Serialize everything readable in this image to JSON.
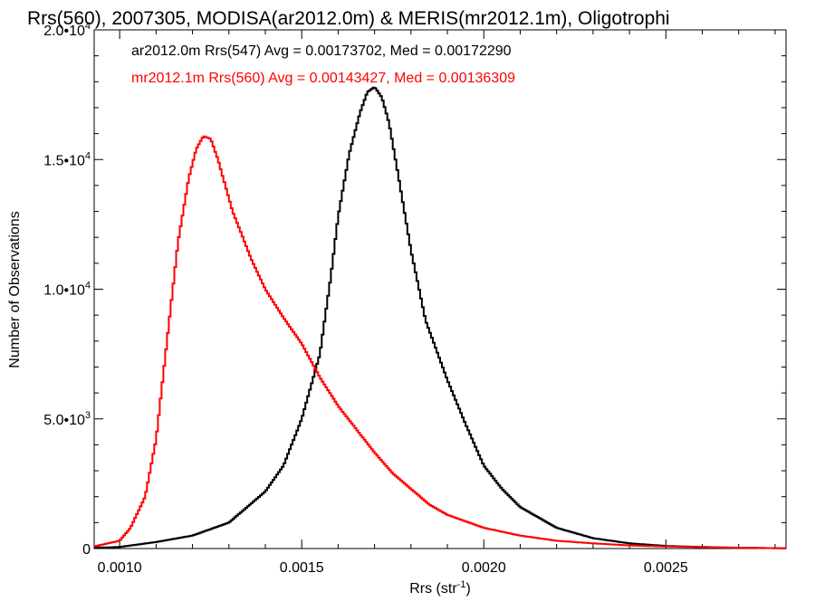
{
  "chart_data": {
    "type": "line",
    "title": "Rrs(560), 2007305, MODISA(ar2012.0m) & MERIS(mr2012.1m), Oligotrophi",
    "xlabel": "Rrs (str",
    "xlabel_sup": "-1",
    "xlabel_end": ")",
    "ylabel": "Number of Observations",
    "xlim": [
      0.00093,
      0.00283
    ],
    "ylim": [
      0,
      20000
    ],
    "grid": false,
    "legend_position": "top-left",
    "x_ticks": [
      {
        "value": 0.001,
        "label": "0.0010"
      },
      {
        "value": 0.0015,
        "label": "0.0015"
      },
      {
        "value": 0.002,
        "label": "0.0020"
      },
      {
        "value": 0.0025,
        "label": "0.0025"
      }
    ],
    "y_ticks": [
      {
        "value": 0,
        "base": "0",
        "exp": ""
      },
      {
        "value": 5000,
        "base": "5.0•10",
        "exp": "3"
      },
      {
        "value": 10000,
        "base": "1.0•10",
        "exp": "4"
      },
      {
        "value": 15000,
        "base": "1.5•10",
        "exp": "4"
      },
      {
        "value": 20000,
        "base": "2.0•10",
        "exp": "4"
      }
    ],
    "series": [
      {
        "name": "ar2012.0m Rrs(547)",
        "legend": "ar2012.0m Rrs(547) Avg = 0.00173702, Med = 0.00172290",
        "color": "#000000",
        "step": true,
        "x": [
          0.00093,
          0.001,
          0.0011,
          0.0012,
          0.0013,
          0.0014,
          0.00145,
          0.0015,
          0.00155,
          0.00158,
          0.0016,
          0.00163,
          0.00166,
          0.00168,
          0.0017,
          0.00172,
          0.00174,
          0.00176,
          0.0018,
          0.00184,
          0.0019,
          0.00195,
          0.002,
          0.00205,
          0.0021,
          0.0022,
          0.0023,
          0.0024,
          0.0025,
          0.0026,
          0.0027,
          0.00283
        ],
        "y": [
          30,
          60,
          250,
          500,
          1000,
          2200,
          3200,
          5000,
          7500,
          10500,
          12800,
          15200,
          16800,
          17600,
          17800,
          17400,
          16400,
          14800,
          11500,
          8800,
          6500,
          4800,
          3200,
          2300,
          1600,
          800,
          400,
          200,
          100,
          60,
          30,
          10
        ]
      },
      {
        "name": "mr2012.1m Rrs(560)",
        "legend": "mr2012.1m Rrs(560) Avg = 0.00143427, Med = 0.00136309",
        "color": "#ff0000",
        "step": true,
        "x": [
          0.00093,
          0.001,
          0.00103,
          0.00107,
          0.0011,
          0.00113,
          0.00116,
          0.00119,
          0.00121,
          0.00123,
          0.00125,
          0.00127,
          0.00129,
          0.00131,
          0.00133,
          0.00136,
          0.0014,
          0.00145,
          0.0015,
          0.00155,
          0.0016,
          0.00165,
          0.0017,
          0.00175,
          0.0018,
          0.00185,
          0.0019,
          0.002,
          0.0021,
          0.0022,
          0.0023,
          0.0024,
          0.0025,
          0.0026,
          0.0027,
          0.00283
        ],
        "y": [
          80,
          300,
          800,
          2000,
          4200,
          8000,
          11800,
          14300,
          15400,
          15900,
          15800,
          15000,
          14000,
          13000,
          12300,
          11200,
          10000,
          8900,
          7900,
          6600,
          5500,
          4600,
          3700,
          2900,
          2300,
          1700,
          1300,
          800,
          500,
          300,
          200,
          120,
          80,
          50,
          30,
          10
        ]
      }
    ]
  }
}
